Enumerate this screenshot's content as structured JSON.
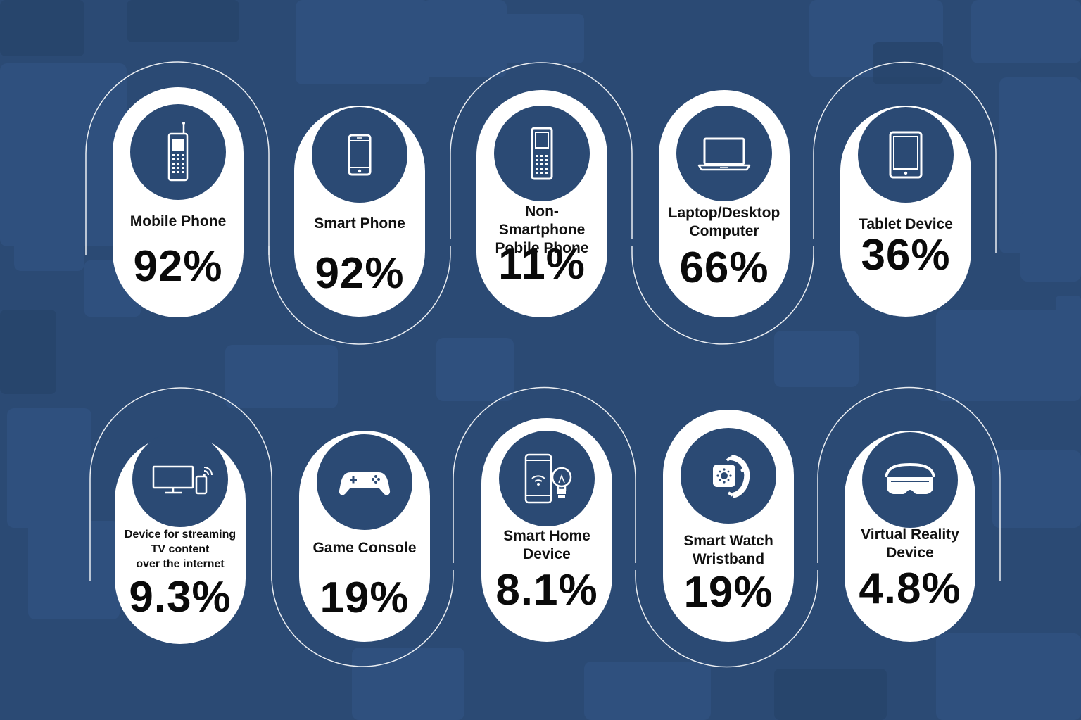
{
  "colors": {
    "background": "#2b4a74",
    "card": "#ffffff",
    "badge": "#2b4a74",
    "text": "#0a0a0a"
  },
  "devices": [
    {
      "label": "Mobile Phone",
      "value": "92%",
      "icon": "mobile-phone-icon"
    },
    {
      "label": "Smart Phone",
      "value": "92%",
      "icon": "smartphone-icon"
    },
    {
      "label": "Non-Smartphone\nPobile Phone",
      "value": "11%",
      "icon": "feature-phone-icon"
    },
    {
      "label": "Laptop/Desktop\nComputer",
      "value": "66%",
      "icon": "laptop-icon"
    },
    {
      "label": "Tablet Device",
      "value": "36%",
      "icon": "tablet-icon"
    },
    {
      "label": "Device for streaming\nTV content\nover the internet",
      "value": "9.3%",
      "icon": "streaming-tv-icon"
    },
    {
      "label": "Game Console",
      "value": "19%",
      "icon": "gamepad-icon"
    },
    {
      "label": "Smart Home\nDevice",
      "value": "8.1%",
      "icon": "smart-home-icon"
    },
    {
      "label": "Smart Watch\nWristband",
      "value": "19%",
      "icon": "smartwatch-icon"
    },
    {
      "label": "Virtual Reality\nDevice",
      "value": "4.8%",
      "icon": "vr-headset-icon"
    }
  ]
}
